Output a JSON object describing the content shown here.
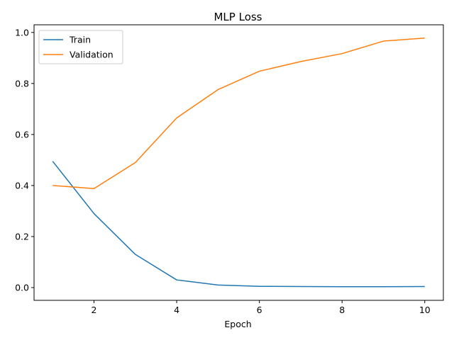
{
  "chart_data": {
    "type": "line",
    "title": "MLP Loss",
    "xlabel": "Epoch",
    "ylabel": "",
    "x": [
      1,
      2,
      3,
      4,
      5,
      6,
      7,
      8,
      9,
      10
    ],
    "xlim": [
      0.55,
      10.45
    ],
    "ylim": [
      -0.05,
      1.03
    ],
    "xticks": [
      2,
      4,
      6,
      8,
      10
    ],
    "yticks": [
      0.0,
      0.2,
      0.4,
      0.6,
      0.8,
      1.0
    ],
    "xtick_labels": [
      "2",
      "4",
      "6",
      "8",
      "10"
    ],
    "ytick_labels": [
      "0.0",
      "0.2",
      "0.4",
      "0.6",
      "0.8",
      "1.0"
    ],
    "grid": false,
    "legend_position": "top-left",
    "series": [
      {
        "name": "Train",
        "color": "#1f77b4",
        "values": [
          0.495,
          0.29,
          0.13,
          0.03,
          0.01,
          0.005,
          0.004,
          0.0035,
          0.0035,
          0.004
        ]
      },
      {
        "name": "Validation",
        "color": "#ff7f0e",
        "values": [
          0.4,
          0.388,
          0.49,
          0.665,
          0.776,
          0.848,
          0.886,
          0.917,
          0.966,
          0.978
        ]
      }
    ]
  }
}
